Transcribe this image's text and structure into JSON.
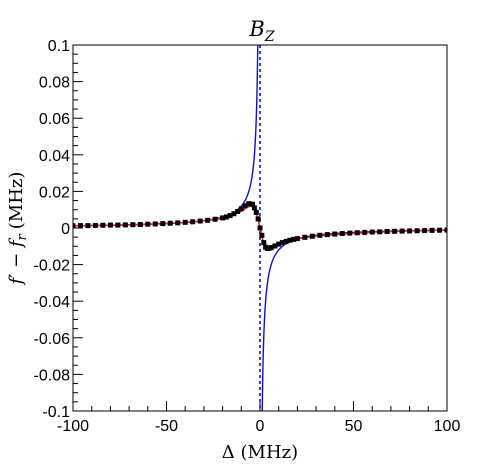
{
  "chart_data": {
    "type": "scatter",
    "title": "B_Z",
    "title_display": {
      "main": "B",
      "sub": "Z"
    },
    "xlabel": "Δ (MHz)",
    "ylabel": "f′ − f_r (MHz)",
    "ylabel_display": "f′ − f",
    "ylabel_sub": "r",
    "ylabel_unit": "(MHz)",
    "xlim": [
      -100,
      100
    ],
    "ylim": [
      -0.1,
      0.1
    ],
    "x_ticks": [
      -100,
      -50,
      0,
      50,
      100
    ],
    "x_tick_labels": [
      "-100",
      "-50",
      "0",
      "50",
      "100"
    ],
    "y_ticks": [
      -0.1,
      -0.08,
      -0.06,
      -0.04,
      -0.02,
      0,
      0.02,
      0.04,
      0.06,
      0.08,
      0.1
    ],
    "y_tick_labels": [
      "-0.1",
      "-0.08",
      "-0.06",
      "-0.04",
      "-0.02",
      "0",
      "0.02",
      "0.04",
      "0.06",
      "0.08",
      "0.1"
    ],
    "grid": false,
    "series": [
      {
        "kind": "markers",
        "color": "#000000",
        "marker": "square",
        "x": [
          -100,
          -96,
          -92,
          -88,
          -84,
          -80,
          -76,
          -72,
          -68,
          -64,
          -60,
          -56,
          -52,
          -48,
          -44,
          -40,
          -36,
          -32,
          -28,
          -24,
          -20,
          -18,
          -16,
          -14,
          -12,
          -10,
          -8,
          -6,
          -4,
          -3,
          -2,
          -1,
          0,
          1,
          2,
          3,
          4,
          5,
          6,
          8,
          10,
          12,
          14,
          16,
          18,
          20,
          24,
          28,
          32,
          36,
          40,
          44,
          48,
          52,
          56,
          60,
          64,
          68,
          72,
          76,
          80,
          84,
          88,
          92,
          96,
          100
        ],
        "y": [
          0.0012,
          0.0013,
          0.0013,
          0.0014,
          0.0015,
          0.0016,
          0.0016,
          0.0017,
          0.0018,
          0.0019,
          0.0021,
          0.0022,
          0.0024,
          0.0026,
          0.0028,
          0.0031,
          0.0034,
          0.0038,
          0.0042,
          0.0048,
          0.0055,
          0.006,
          0.0068,
          0.0078,
          0.009,
          0.0105,
          0.0122,
          0.0133,
          0.013,
          0.011,
          0.0085,
          0.005,
          0.0,
          -0.004,
          -0.008,
          -0.0105,
          -0.0112,
          -0.011,
          -0.0107,
          -0.0098,
          -0.0088,
          -0.008,
          -0.0073,
          -0.0067,
          -0.0062,
          -0.0058,
          -0.0051,
          -0.0045,
          -0.004,
          -0.0036,
          -0.0033,
          -0.003,
          -0.0028,
          -0.0026,
          -0.0024,
          -0.0022,
          -0.0021,
          -0.0019,
          -0.0018,
          -0.0017,
          -0.0016,
          -0.0015,
          -0.0014,
          -0.0013,
          -0.0012,
          -0.0011
        ]
      },
      {
        "kind": "fit-line",
        "color": "#e8202a",
        "x": [
          -100,
          -80,
          -60,
          -40,
          -30,
          -20,
          -15,
          -10,
          -7,
          -5,
          -3,
          -2,
          -1,
          0,
          1,
          2,
          3,
          4,
          5,
          6,
          8,
          10,
          15,
          20,
          30,
          40,
          60,
          80,
          100
        ],
        "y": [
          0.0012,
          0.0015,
          0.0021,
          0.003,
          0.0039,
          0.0053,
          0.0066,
          0.0092,
          0.0112,
          0.0122,
          0.011,
          0.0085,
          0.0045,
          0.0,
          -0.0045,
          -0.0085,
          -0.0108,
          -0.0114,
          -0.0111,
          -0.0106,
          -0.0096,
          -0.0087,
          -0.007,
          -0.0058,
          -0.0044,
          -0.0035,
          -0.0023,
          -0.0016,
          -0.0011
        ]
      },
      {
        "kind": "theory-line",
        "color": "#1010d0",
        "formula": "y = 0.12 / x (divergent, clipped at axis range)",
        "coefficient": 0.12
      },
      {
        "kind": "vertical-dashed-line",
        "color": "#1010d0",
        "x": 0
      }
    ]
  }
}
